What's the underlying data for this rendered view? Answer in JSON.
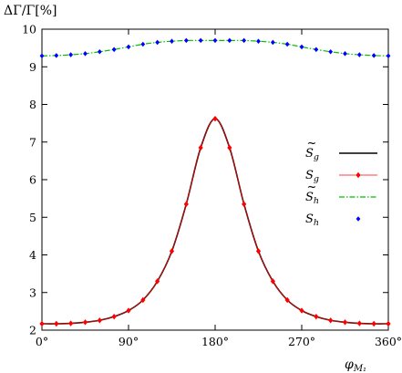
{
  "chart_data": {
    "type": "line",
    "ylabel": "ΔΓ/Γ[%]",
    "xlabel": "φ",
    "xlabel_sub": "M₁",
    "xlim": [
      0,
      360
    ],
    "ylim": [
      2,
      10
    ],
    "x_ticks": [
      0,
      90,
      180,
      270,
      360
    ],
    "x_tick_labels": [
      "0°",
      "90°",
      "180°",
      "270°",
      "360°"
    ],
    "y_ticks": [
      2,
      3,
      4,
      5,
      6,
      7,
      8,
      9,
      10
    ],
    "y_tick_labels": [
      "2",
      "3",
      "4",
      "5",
      "6",
      "7",
      "8",
      "9",
      "10"
    ],
    "grid": false,
    "legend_position": "right",
    "x": [
      0,
      15,
      30,
      45,
      60,
      75,
      90,
      105,
      120,
      135,
      150,
      165,
      180,
      195,
      210,
      225,
      240,
      255,
      270,
      285,
      300,
      315,
      330,
      345,
      360
    ],
    "series": [
      {
        "name": "S̃g",
        "base": "S",
        "sub": "g",
        "tilde": true,
        "color": "#000000",
        "style": "solid-line",
        "values": [
          2.17,
          2.17,
          2.18,
          2.21,
          2.26,
          2.36,
          2.52,
          2.8,
          3.3,
          4.1,
          5.35,
          6.85,
          7.62,
          6.85,
          5.35,
          4.1,
          3.3,
          2.8,
          2.52,
          2.36,
          2.26,
          2.21,
          2.18,
          2.17,
          2.17
        ]
      },
      {
        "name": "Sg",
        "base": "S",
        "sub": "g",
        "tilde": false,
        "color": "#ff0000",
        "style": "line-diamond",
        "values": [
          2.17,
          2.17,
          2.18,
          2.21,
          2.26,
          2.36,
          2.52,
          2.8,
          3.3,
          4.1,
          5.35,
          6.85,
          7.62,
          6.85,
          5.35,
          4.1,
          3.3,
          2.8,
          2.52,
          2.36,
          2.26,
          2.21,
          2.18,
          2.17,
          2.17
        ]
      },
      {
        "name": "S̃h",
        "base": "S",
        "sub": "h",
        "tilde": true,
        "color": "#00c000",
        "style": "dash-dot",
        "values": [
          9.29,
          9.3,
          9.32,
          9.35,
          9.4,
          9.46,
          9.53,
          9.6,
          9.65,
          9.68,
          9.7,
          9.7,
          9.7,
          9.7,
          9.7,
          9.68,
          9.65,
          9.6,
          9.53,
          9.46,
          9.4,
          9.35,
          9.32,
          9.3,
          9.29
        ]
      },
      {
        "name": "Sh",
        "base": "S",
        "sub": "h",
        "tilde": false,
        "color": "#0000ff",
        "style": "points",
        "values": [
          9.29,
          9.3,
          9.32,
          9.35,
          9.4,
          9.46,
          9.53,
          9.6,
          9.65,
          9.68,
          9.7,
          9.7,
          9.7,
          9.7,
          9.7,
          9.68,
          9.65,
          9.6,
          9.53,
          9.46,
          9.4,
          9.35,
          9.32,
          9.3,
          9.29
        ]
      }
    ]
  }
}
